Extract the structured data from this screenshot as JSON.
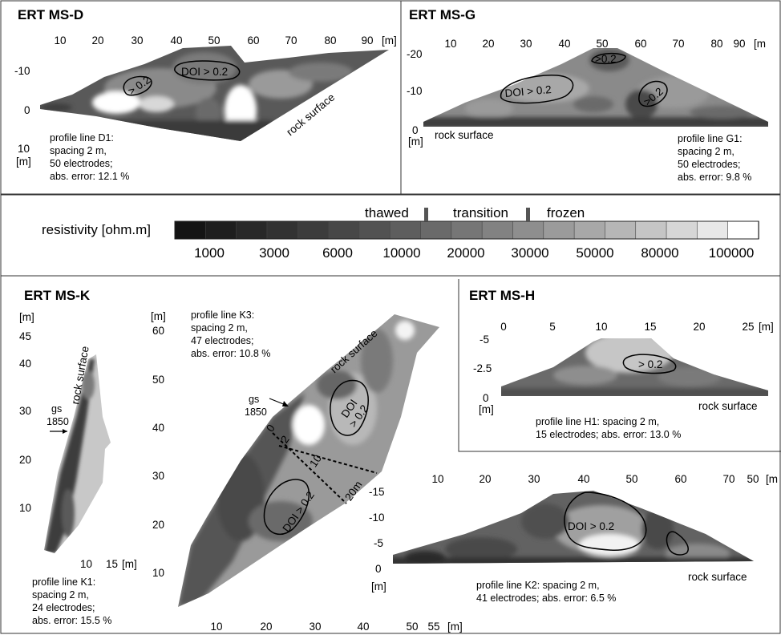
{
  "panels": {
    "msd": {
      "title": "ERT MS-D",
      "xticks": [
        "10",
        "20",
        "30",
        "40",
        "50",
        "60",
        "70",
        "80",
        "90"
      ],
      "xunit": "[m]",
      "yticks": [
        "-10",
        "0",
        "10"
      ],
      "yunit": "[m]",
      "doi_small": "> 0.2",
      "doi_label": "DOI > 0.2",
      "rock": "rock surface",
      "note": [
        "profile line D1:",
        "spacing 2 m,",
        "50 electrodes;",
        "abs. error: 12.1 %"
      ]
    },
    "msg": {
      "title": "ERT MS-G",
      "xticks": [
        "10",
        "20",
        "30",
        "40",
        "50",
        "60",
        "70",
        "80",
        "90"
      ],
      "xunit": "[m",
      "yticks": [
        "-20",
        "-10",
        "0"
      ],
      "yunit": "[m]",
      "doi_small_top": ">0.2",
      "doi_label": "DOI > 0.2",
      "doi_small_right": ">0.2",
      "rock": "rock surface",
      "note": [
        "profile line G1:",
        "spacing 2 m,",
        "50 electrodes;",
        "abs. error: 9.8 %"
      ]
    },
    "legend": {
      "caption": "resistivity [ohm.m]",
      "states": [
        "thawed",
        "transition",
        "frozen"
      ],
      "values": [
        "1000",
        "3000",
        "6000",
        "10000",
        "20000",
        "30000",
        "50000",
        "80000",
        "100000"
      ],
      "colors": [
        "#141414",
        "#1e1e1e",
        "#282828",
        "#323232",
        "#3c3c3c",
        "#474747",
        "#525252",
        "#5e5e5e",
        "#6a6a6a",
        "#767676",
        "#828282",
        "#8e8e8e",
        "#9b9b9b",
        "#a8a8a8",
        "#b6b6b6",
        "#c5c5c5",
        "#d6d6d6",
        "#e8e8e8",
        "#ffffff"
      ]
    },
    "msk": {
      "title": "ERT MS-K",
      "k1_yunit": "[m]",
      "k1_yticks": [
        "45",
        "40",
        "30",
        "20",
        "10"
      ],
      "k1_xticks": [
        "10",
        "15"
      ],
      "k1_xunit": "[m]",
      "k1_rock": "rock surface",
      "k1_gs": [
        "gs",
        "1850"
      ],
      "k1_note": [
        "profile line K1:",
        "spacing 2 m,",
        "24 electrodes;",
        "abs. error: 15.5 %"
      ],
      "k3_yunit": "[m]",
      "k3_yticks": [
        "60",
        "50",
        "40",
        "30",
        "20",
        "10"
      ],
      "k3_xticks": [
        "10",
        "20",
        "30",
        "40",
        "50",
        "55"
      ],
      "k3_xunit": "[m]",
      "k3_note": [
        "profile line K3:",
        "spacing 2 m,",
        "47 electrodes;",
        "abs. error: 10.8 %"
      ],
      "k3_rock": "rock surface",
      "k3_gs": [
        "gs",
        "1850"
      ],
      "k3_depth": [
        "0",
        "2",
        "10",
        "20m"
      ],
      "k3_doi1": [
        "DOI",
        "> 0.2"
      ],
      "k3_doi2": "DOI > 0.2",
      "k2_xticks": [
        "10",
        "20",
        "30",
        "40",
        "50",
        "60",
        "70",
        "50"
      ],
      "k2_xunit": "[m",
      "k2_yticks": [
        "-15",
        "-10",
        "-5",
        "0"
      ],
      "k2_yunit": "[m]",
      "k2_doi": "DOI > 0.2",
      "k2_rock": "rock surface",
      "k2_note": [
        "profile line K2: spacing 2 m,",
        "41 electrodes; abs. error: 6.5 %"
      ]
    },
    "msh": {
      "title": "ERT MS-H",
      "xticks": [
        "0",
        "5",
        "10",
        "15",
        "20",
        "25"
      ],
      "xunit": "[m]",
      "yticks": [
        "-5",
        "-2.5",
        "0"
      ],
      "yunit": "[m]",
      "doi": "> 0.2",
      "rock": "rock surface",
      "note": [
        "profile line H1: spacing 2 m,",
        "15 electrodes; abs. error: 13.0 %"
      ]
    }
  }
}
